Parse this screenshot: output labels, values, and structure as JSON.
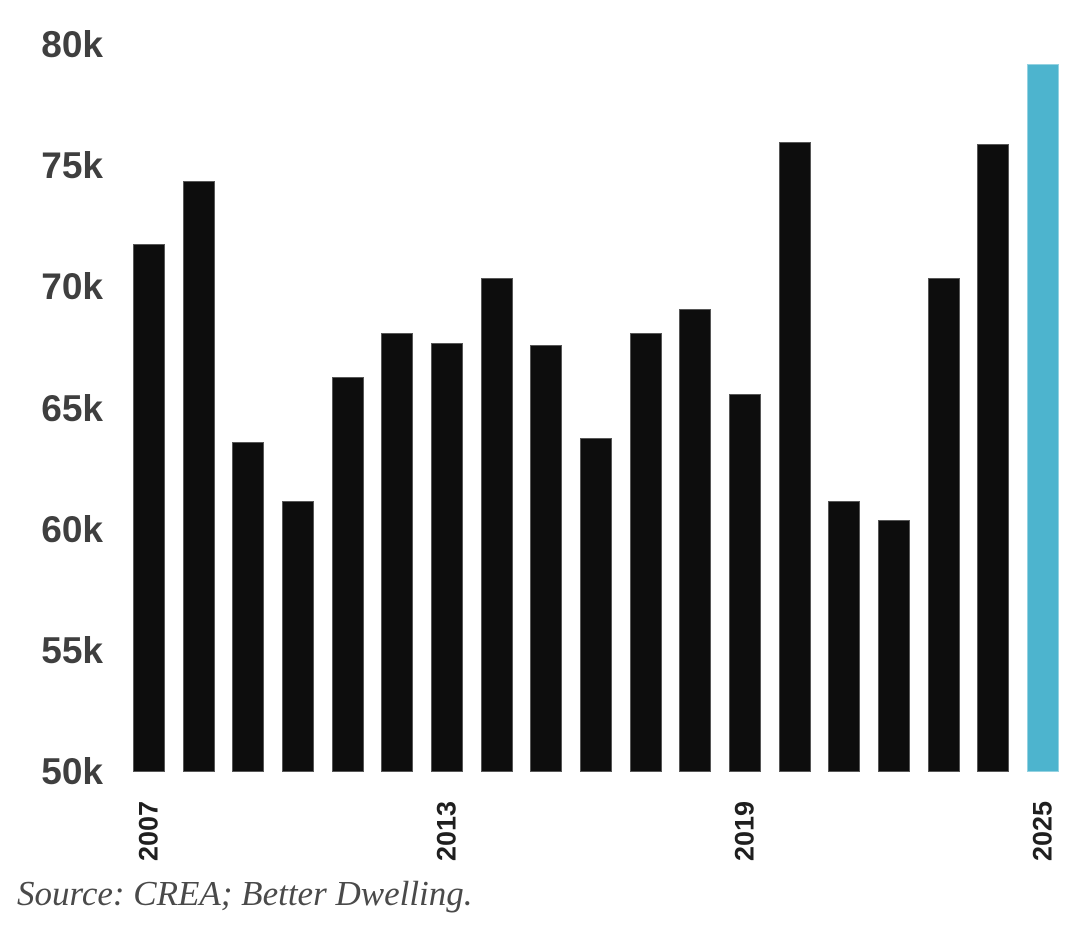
{
  "chart_data": {
    "type": "bar",
    "title": "",
    "xlabel": "",
    "ylabel": "",
    "unit": "k",
    "categories": [
      "2007",
      "2008",
      "2009",
      "2010",
      "2011",
      "2012",
      "2013",
      "2014",
      "2015",
      "2016",
      "2017",
      "2018",
      "2019",
      "2020",
      "2021",
      "2022",
      "2023",
      "2024",
      "2025"
    ],
    "values": [
      71.8,
      74.4,
      63.6,
      61.2,
      66.3,
      68.1,
      67.7,
      70.4,
      67.6,
      63.8,
      68.1,
      69.1,
      65.6,
      76.0,
      61.2,
      60.4,
      70.4,
      75.9,
      79.2
    ],
    "ylim": [
      50,
      80
    ],
    "yticks": [
      {
        "label": "80k",
        "value": 80
      },
      {
        "label": "75k",
        "value": 75
      },
      {
        "label": "70k",
        "value": 70
      },
      {
        "label": "65k",
        "value": 65
      },
      {
        "label": "60k",
        "value": 60
      },
      {
        "label": "55k",
        "value": 55
      },
      {
        "label": "50k",
        "value": 50
      }
    ],
    "xticks": [
      {
        "label": "2007",
        "index": 0
      },
      {
        "label": "2013",
        "index": 6
      },
      {
        "label": "2019",
        "index": 12
      },
      {
        "label": "2025",
        "index": 18
      }
    ],
    "grid": false,
    "legend": "none",
    "bar_color": "#0d0d0d",
    "highlight_color": "#4db4ce",
    "highlight_category": "2025",
    "ytick_color": "#3f3f3f",
    "xtick_color": "#1f1f1f"
  },
  "source_text": "Source: CREA; Better Dwelling.",
  "source_color": "#4a4a4a"
}
